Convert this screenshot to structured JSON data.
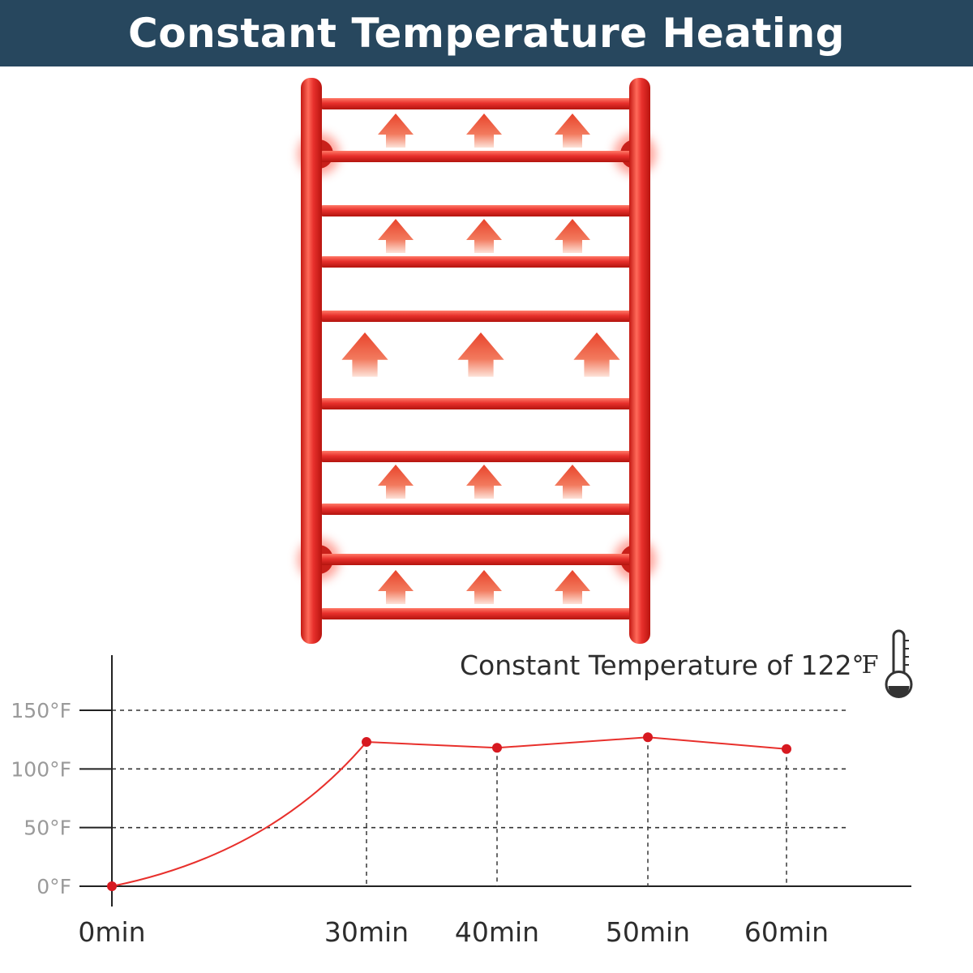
{
  "banner": {
    "title": "Constant Temperature Heating"
  },
  "colors": {
    "banner_bg": "#27475e",
    "rack_red": "#e8302c",
    "arrow_red": "#e8462e",
    "line_red": "#e8302c",
    "point_red": "#d71920"
  },
  "rack": {
    "bars": 10,
    "arrow_groups": 5,
    "arrows_per_group": 3
  },
  "chart_data": {
    "type": "line",
    "title": "",
    "annotation": {
      "text": "Constant Temperature of 122",
      "unit": "℉",
      "icon": "thermometer-icon"
    },
    "x": [
      0,
      30,
      40,
      50,
      60
    ],
    "x_tick_labels": [
      "0min",
      "30min",
      "40min",
      "50min",
      "60min"
    ],
    "y": [
      0,
      123,
      118,
      127,
      117
    ],
    "y_ticks": [
      0,
      50,
      100,
      150
    ],
    "y_tick_labels": [
      "0°F",
      "50°F",
      "100°F",
      "150°F"
    ],
    "ylim": [
      0,
      150
    ],
    "grid": "horizontal dashed",
    "series": [
      {
        "values": [
          0,
          123,
          118,
          127,
          117
        ]
      }
    ]
  }
}
